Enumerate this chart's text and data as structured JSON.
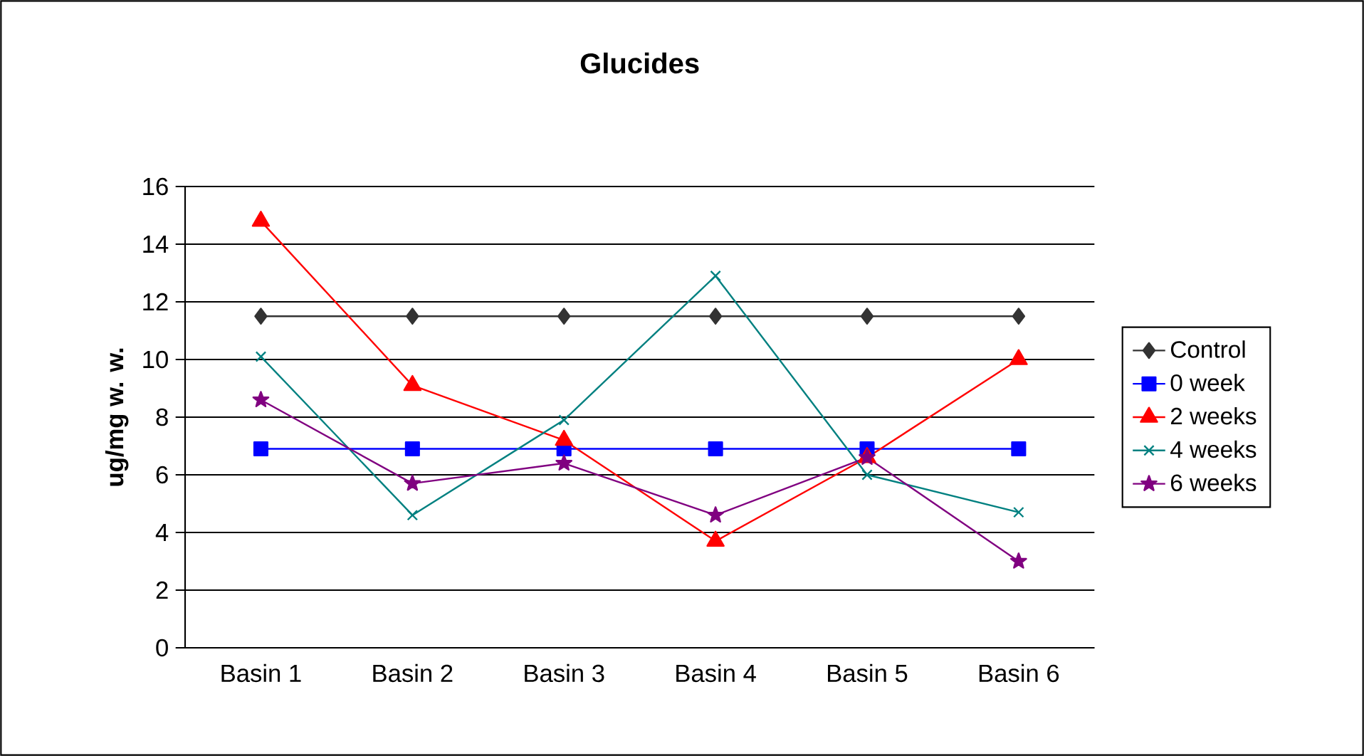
{
  "chart_data": {
    "type": "line",
    "title": "Glucides",
    "ylabel": "ug/mg w. w.",
    "categories": [
      "Basin 1",
      "Basin 2",
      "Basin 3",
      "Basin 4",
      "Basin 5",
      "Basin 6"
    ],
    "series": [
      {
        "name": "Control",
        "color": "#333333",
        "marker": "diamond",
        "values": [
          11.5,
          11.5,
          11.5,
          11.5,
          11.5,
          11.5
        ]
      },
      {
        "name": "0 week",
        "color": "#0000ff",
        "marker": "square",
        "values": [
          6.9,
          6.9,
          6.9,
          6.9,
          6.9,
          6.9
        ]
      },
      {
        "name": "2 weeks",
        "color": "#ff0000",
        "marker": "triangle",
        "values": [
          14.8,
          9.1,
          7.2,
          3.7,
          6.6,
          10.0
        ]
      },
      {
        "name": "4 weeks",
        "color": "#008080",
        "marker": "cross",
        "values": [
          10.1,
          4.6,
          7.9,
          12.9,
          6.0,
          4.7
        ]
      },
      {
        "name": "6 weeks",
        "color": "#800080",
        "marker": "star",
        "values": [
          8.6,
          5.7,
          6.4,
          4.6,
          6.6,
          3.0
        ]
      }
    ],
    "ylim": [
      0,
      16
    ],
    "yticks": [
      0,
      2,
      4,
      6,
      8,
      10,
      12,
      14,
      16
    ],
    "grid": "y",
    "legend": "right",
    "line_style": "solid"
  }
}
